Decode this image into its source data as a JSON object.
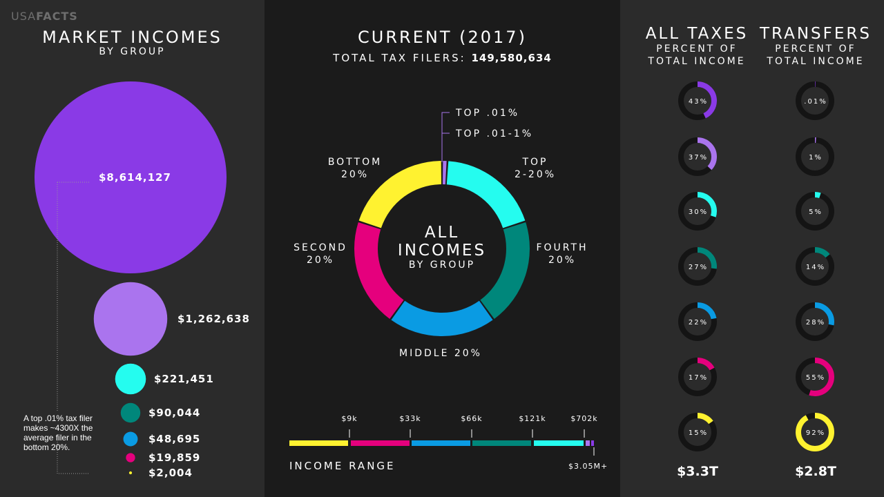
{
  "brand": {
    "prefix": "USA",
    "suffix": "FACTS"
  },
  "left": {
    "title": "MARKET INCOMES",
    "subtitle": "BY GROUP",
    "note": "A top .01% tax filer makes ~4300X the average filer in the bottom 20%."
  },
  "mid": {
    "title": "CURRENT (2017)",
    "filers_label": "TOTAL TAX FILERS:",
    "filers_value": "149,580,634",
    "center_line1": "ALL",
    "center_line2": "INCOMES",
    "center_line3": "BY GROUP",
    "income_range_label": "INCOME RANGE",
    "income_range_max": "$3.05M+"
  },
  "right": {
    "taxes_title": "ALL TAXES",
    "taxes_sub1": "PERCENT OF",
    "taxes_sub2": "TOTAL INCOME",
    "transfers_title": "TRANSFERS",
    "transfers_sub1": "PERCENT OF",
    "transfers_sub2": "TOTAL INCOME",
    "taxes_total": "$3.3T",
    "transfers_total": "$2.8T"
  },
  "colors": {
    "top01": "#8a3ae6",
    "top01_1": "#aa74ee",
    "top2_20": "#25fcef",
    "fourth": "#00877b",
    "middle": "#0a9be3",
    "second": "#e5007d",
    "bottom": "#fff230",
    "ring_bg": "#141414"
  },
  "chart_data": [
    {
      "type": "bubble",
      "title": "MARKET INCOMES",
      "subtitle": "BY GROUP",
      "categories": [
        "Top .01%",
        "Top .01-1%",
        "Top 2-20%",
        "Fourth 20%",
        "Middle 20%",
        "Second 20%",
        "Bottom 20%"
      ],
      "values": [
        8614127,
        1262638,
        221451,
        90044,
        48695,
        19859,
        2004
      ],
      "labels": [
        "$8,614,127",
        "$1,262,638",
        "$221,451",
        "$90,044",
        "$48,695",
        "$19,859",
        "$2,004"
      ]
    },
    {
      "type": "pie",
      "title": "CURRENT (2017)",
      "categories": [
        "TOP .01%",
        "TOP .01-1%",
        "TOP 2-20%",
        "FOURTH 20%",
        "MIDDLE 20%",
        "SECOND 20%",
        "BOTTOM 20%"
      ],
      "label_lines": [
        [
          "TOP .01%"
        ],
        [
          "TOP .01-1%"
        ],
        [
          "TOP",
          "2-20%"
        ],
        [
          "FOURTH",
          "20%"
        ],
        [
          "MIDDLE 20%"
        ],
        [
          "SECOND",
          "20%"
        ],
        [
          "BOTTOM",
          "20%"
        ]
      ],
      "values": [
        0.01,
        0.99,
        19,
        20,
        20,
        20,
        20
      ]
    },
    {
      "type": "bar",
      "title": "INCOME RANGE",
      "categories": [
        "Bottom 20%",
        "Second 20%",
        "Middle 20%",
        "Fourth 20%",
        "Top 2-20%",
        "Top .01-1%",
        "Top .01%"
      ],
      "thresholds": [
        "$9k",
        "$33k",
        "$66k",
        "$121k",
        "$702k"
      ],
      "max_label": "$3.05M+"
    },
    {
      "type": "pie",
      "title": "ALL TAXES PERCENT OF TOTAL INCOME",
      "categories": [
        "Top .01%",
        "Top .01-1%",
        "Top 2-20%",
        "Fourth 20%",
        "Middle 20%",
        "Second 20%",
        "Bottom 20%"
      ],
      "values": [
        43,
        37,
        30,
        27,
        22,
        17,
        15
      ],
      "labels": [
        "43%",
        "37%",
        "30%",
        "27%",
        "22%",
        "17%",
        "15%"
      ],
      "total": "$3.3T"
    },
    {
      "type": "pie",
      "title": "TRANSFERS PERCENT OF TOTAL INCOME",
      "categories": [
        "Top .01%",
        "Top .01-1%",
        "Top 2-20%",
        "Fourth 20%",
        "Middle 20%",
        "Second 20%",
        "Bottom 20%"
      ],
      "values": [
        0.01,
        1,
        5,
        14,
        28,
        55,
        92
      ],
      "labels": [
        ".01%",
        "1%",
        "5%",
        "14%",
        "28%",
        "55%",
        "92%"
      ],
      "total": "$2.8T"
    }
  ]
}
